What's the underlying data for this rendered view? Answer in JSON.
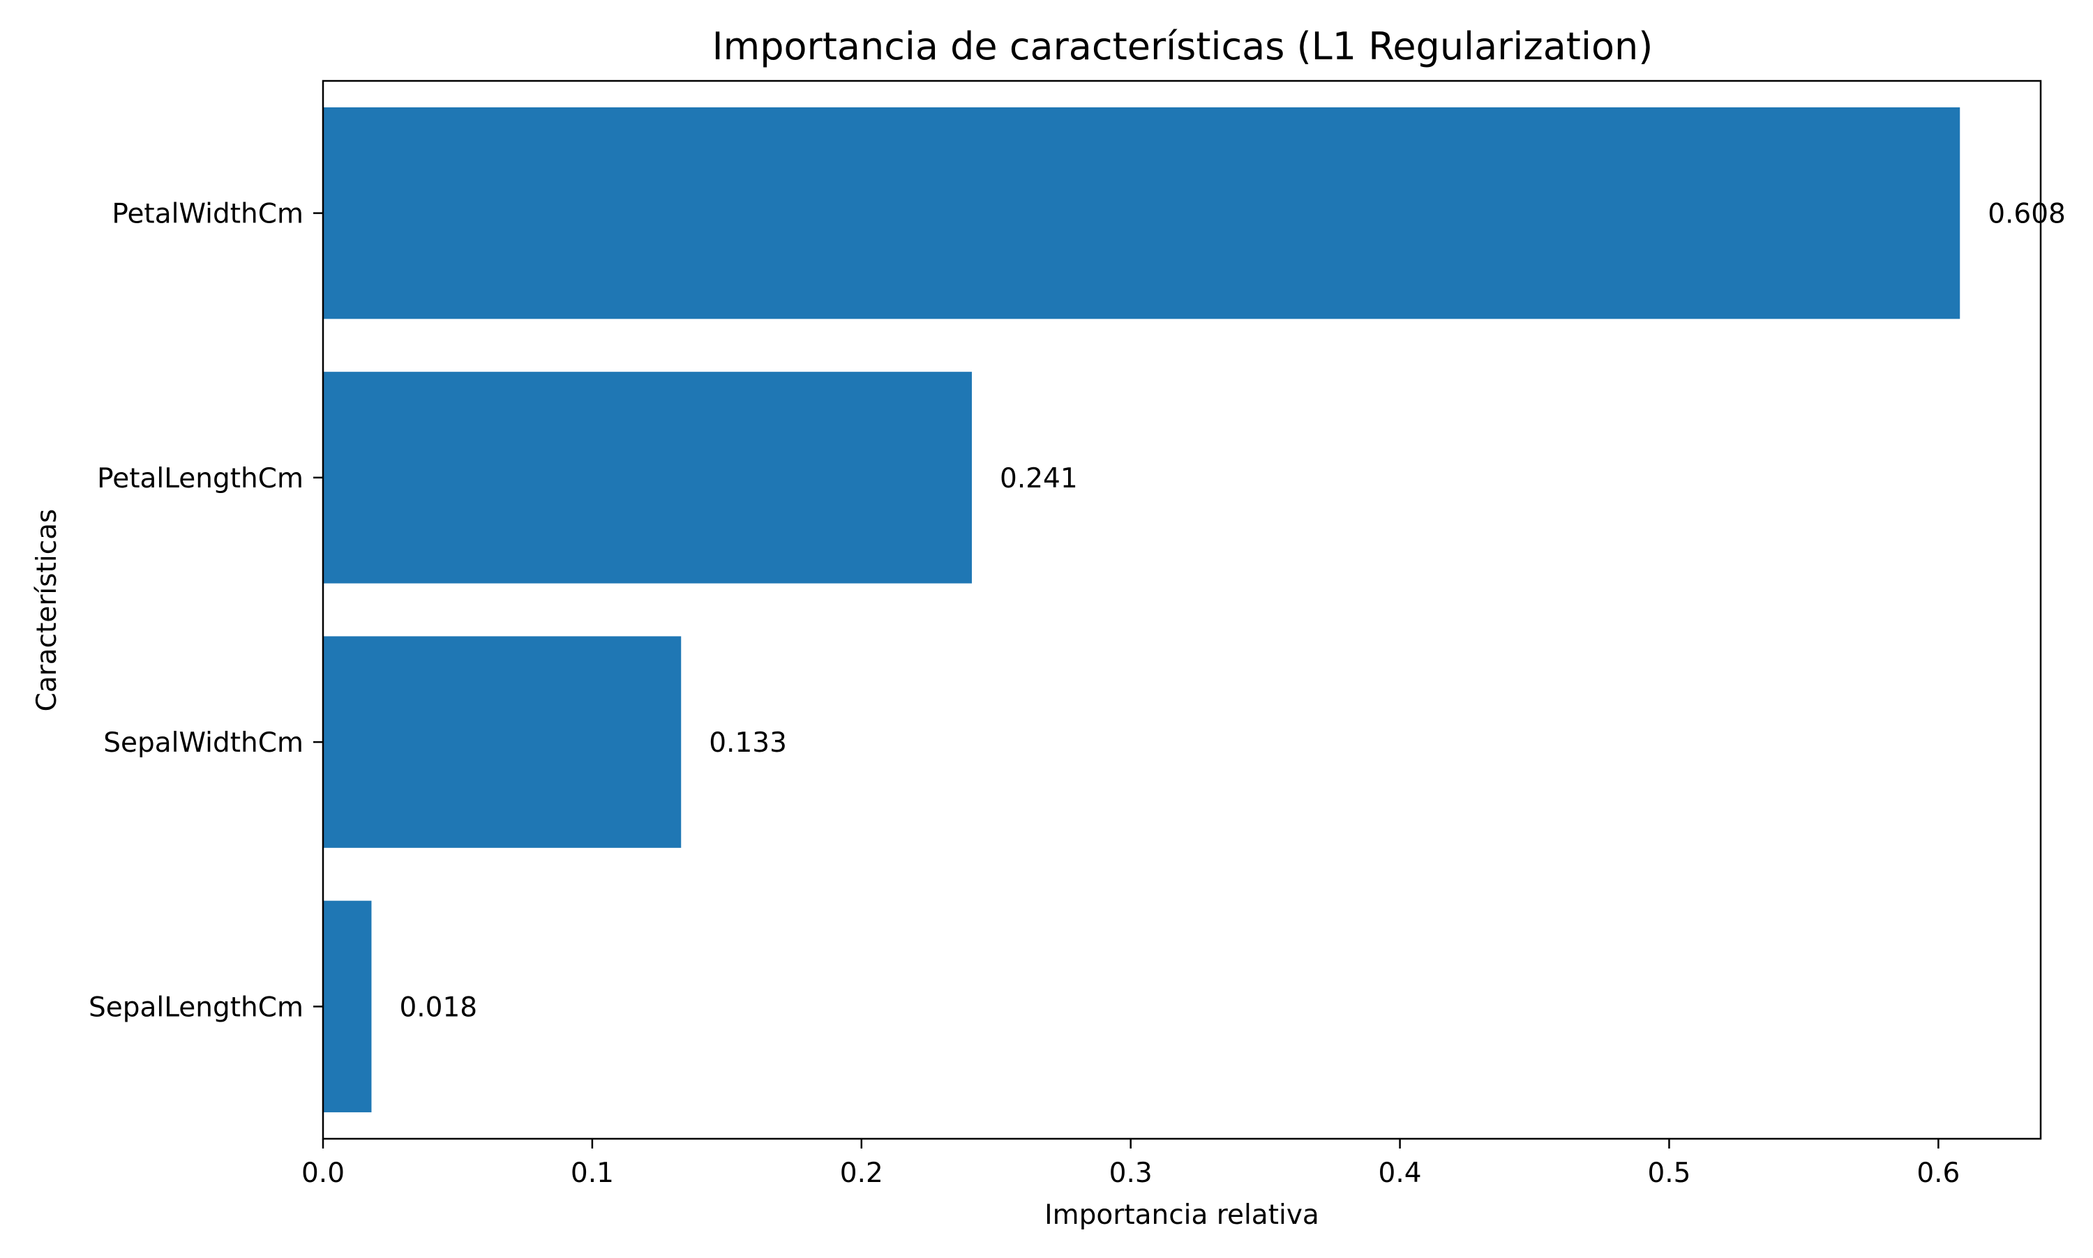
{
  "chart_data": {
    "type": "bar",
    "orientation": "horizontal",
    "title": "Importancia de características (L1 Regularization)",
    "xlabel": "Importancia relativa",
    "ylabel": "Características",
    "categories": [
      "SepalLengthCm",
      "SepalWidthCm",
      "PetalLengthCm",
      "PetalWidthCm"
    ],
    "values": [
      0.018,
      0.133,
      0.241,
      0.608
    ],
    "value_labels": [
      "0.018",
      "0.133",
      "0.241",
      "0.608"
    ],
    "xlim": [
      0,
      0.638
    ],
    "xticks": [
      0.0,
      0.1,
      0.2,
      0.3,
      0.4,
      0.5,
      0.6
    ],
    "xtick_labels": [
      "0.0",
      "0.1",
      "0.2",
      "0.3",
      "0.4",
      "0.5",
      "0.6"
    ],
    "grid": false,
    "legend": "none",
    "bar_color": "#1f77b4",
    "axis_color": "#000000"
  }
}
